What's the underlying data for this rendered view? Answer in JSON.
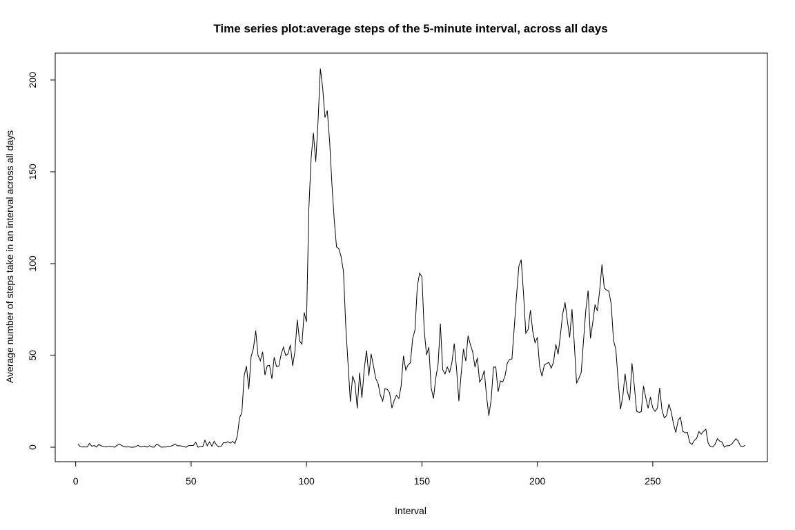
{
  "chart_data": {
    "type": "line",
    "title": "Time series plot:average steps of the 5-minute interval, across all days",
    "xlabel": "Interval",
    "ylabel": "Average number of steps take in an interval across all days",
    "xlim": [
      1,
      288
    ],
    "ylim": [
      0,
      206
    ],
    "x_ticks": [
      "0",
      "50",
      "100",
      "150",
      "200",
      "250"
    ],
    "y_ticks": [
      "0",
      "50",
      "100",
      "150",
      "200"
    ],
    "grid": false,
    "legend": "none",
    "line_color": "#000000",
    "x_start": 1,
    "values": [
      1.7,
      0.3,
      0.1,
      0.2,
      0.1,
      2.1,
      0.5,
      0.9,
      0.0,
      1.5,
      0.8,
      0.3,
      0.1,
      0.3,
      0.3,
      0.2,
      0.0,
      1.1,
      1.6,
      0.9,
      0.2,
      0.1,
      0.2,
      0.0,
      0.0,
      0.2,
      1.1,
      0.1,
      0.3,
      0.4,
      0.0,
      0.8,
      0.1,
      0.0,
      1.5,
      1.1,
      0.0,
      0.1,
      0.1,
      0.3,
      0.5,
      0.9,
      1.7,
      0.8,
      0.8,
      0.6,
      0.2,
      0.0,
      1.0,
      0.9,
      1.0,
      2.7,
      0.0,
      0.3,
      0.2,
      3.8,
      0.8,
      2.9,
      0.5,
      3.2,
      1.2,
      0.1,
      0.5,
      2.4,
      2.4,
      3.0,
      2.2,
      3.2,
      2.0,
      6.0,
      16.0,
      18.8,
      39.0,
      44.2,
      31.5,
      49.3,
      53.8,
      63.5,
      50.0,
      47.1,
      52.0,
      39.3,
      44.4,
      44.6,
      37.3,
      49.0,
      43.9,
      44.2,
      50.5,
      54.5,
      49.9,
      51.0,
      55.7,
      44.3,
      52.3,
      69.5,
      57.8,
      56.2,
      73.4,
      68.2,
      129.4,
      157.5,
      171.2,
      155.4,
      177.3,
      206.2,
      195.9,
      179.6,
      183.4,
      167.0,
      143.5,
      124.0,
      109.1,
      108.1,
      103.7,
      95.9,
      66.2,
      45.2,
      24.8,
      38.8,
      34.9,
      21.1,
      40.6,
      26.9,
      42.4,
      52.7,
      38.9,
      50.8,
      44.3,
      37.4,
      34.7,
      28.3,
      25.1,
      31.9,
      31.4,
      29.7,
      21.3,
      25.5,
      28.3,
      26.5,
      33.4,
      49.8,
      42.0,
      44.8,
      46.0,
      59.2,
      63.9,
      87.6,
      94.8,
      92.8,
      63.4,
      50.2,
      54.5,
      32.4,
      26.5,
      37.7,
      45.1,
      67.3,
      42.3,
      39.9,
      43.6,
      40.8,
      46.2,
      56.4,
      42.8,
      25.1,
      40.0,
      53.5,
      46.9,
      60.8,
      55.8,
      51.9,
      43.6,
      48.7,
      35.5,
      37.5,
      41.8,
      27.5,
      17.1,
      26.1,
      43.6,
      43.7,
      30.2,
      36.1,
      35.5,
      38.8,
      45.9,
      47.8,
      48.1,
      65.3,
      82.9,
      98.7,
      102.1,
      83.9,
      62.1,
      64.1,
      74.7,
      63.2,
      56.9,
      59.8,
      43.9,
      38.6,
      44.7,
      45.5,
      46.2,
      43.1,
      46.2,
      56.0,
      50.6,
      61.2,
      72.7,
      78.9,
      68.9,
      59.7,
      75.1,
      56.5,
      34.8,
      37.5,
      40.7,
      58.0,
      74.7,
      85.3,
      59.3,
      67.8,
      77.7,
      74.2,
      85.3,
      99.5,
      86.6,
      85.6,
      84.9,
      77.8,
      58.0,
      53.4,
      36.3,
      20.7,
      27.4,
      40.0,
      30.2,
      25.5,
      45.7,
      33.5,
      19.6,
      19.0,
      19.3,
      33.3,
      26.8,
      21.2,
      27.3,
      21.3,
      19.5,
      21.3,
      32.3,
      20.2,
      15.9,
      17.2,
      23.5,
      19.2,
      12.5,
      8.0,
      14.7,
      16.3,
      8.7,
      7.8,
      8.1,
      2.6,
      1.5,
      3.7,
      4.8,
      8.5,
      7.1,
      8.7,
      9.8,
      2.2,
      0.3,
      0.1,
      1.6,
      4.6,
      3.3,
      2.8,
      0.0,
      0.8,
      0.8,
      1.4,
      3.0,
      4.6,
      3.3,
      0.6,
      0.2,
      1.1
    ]
  }
}
